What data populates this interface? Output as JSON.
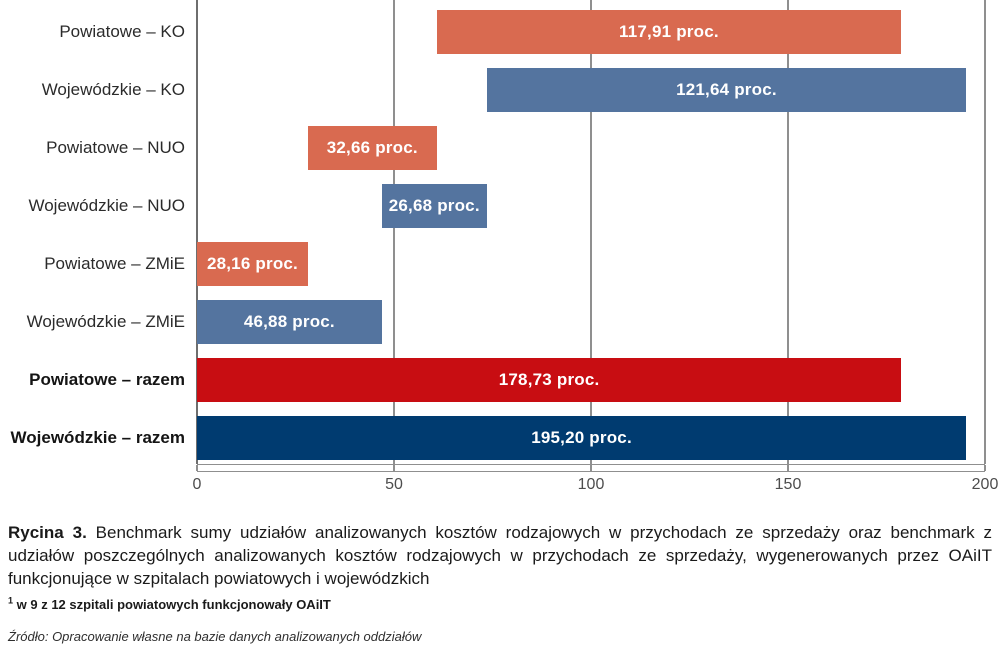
{
  "chart_data": {
    "type": "bar",
    "orientation": "horizontal",
    "style": "waterfall-stacked",
    "title": "",
    "xlabel": "",
    "ylabel": "",
    "xlim": [
      0,
      200
    ],
    "x_ticks": [
      0,
      50,
      100,
      150,
      200
    ],
    "grid": true,
    "grid_color": "#8f8f8f",
    "zero_axis_color": "#6e6e6e",
    "unit_suffix": "proc.",
    "bars": [
      {
        "category": "Powiatowe – KO",
        "start": 60.82,
        "value": 117.91,
        "label": "117,91 proc.",
        "color": "#d96a50",
        "bold_category": false
      },
      {
        "category": "Wojewódzkie – KO",
        "start": 73.56,
        "value": 121.64,
        "label": "121,64 proc.",
        "color": "#54749f",
        "bold_category": false
      },
      {
        "category": "Powiatowe – NUO",
        "start": 28.16,
        "value": 32.66,
        "label": "32,66 proc.",
        "color": "#d96a50",
        "bold_category": false
      },
      {
        "category": "Wojewódzkie – NUO",
        "start": 46.88,
        "value": 26.68,
        "label": "26,68 proc.",
        "color": "#54749f",
        "bold_category": false
      },
      {
        "category": "Powiatowe – ZMiE",
        "start": 0,
        "value": 28.16,
        "label": "28,16 proc.",
        "color": "#d96a50",
        "bold_category": false
      },
      {
        "category": "Wojewódzkie – ZMiE",
        "start": 0,
        "value": 46.88,
        "label": "46,88 proc.",
        "color": "#54749f",
        "bold_category": false
      },
      {
        "category": "Powiatowe – razem",
        "start": 0,
        "value": 178.73,
        "label": "178,73 proc.",
        "color": "#c80d12",
        "bold_category": true
      },
      {
        "category": "Wojewódzkie – razem",
        "start": 0,
        "value": 195.2,
        "label": "195,20 proc.",
        "color": "#003b70",
        "bold_category": true
      }
    ]
  },
  "caption": {
    "prefix": "Rycina 3.",
    "text": "Benchmark sumy udziałów analizowanych kosztów rodzajowych w przychodach ze sprzedaży oraz benchmark z udziałów poszczególnych analizowanych kosztów rodzajowych w przychodach ze sprzedaży, wygenerowanych przez OAiIT funkcjonujące w szpitalach powiatowych i wojewódzkich"
  },
  "footnote": {
    "marker": "1",
    "text": "w 9 z 12 szpitali powiatowych funkcjonowały OAiIT"
  },
  "source": "Źródło: Opracowanie własne na bazie danych analizowanych oddziałów"
}
